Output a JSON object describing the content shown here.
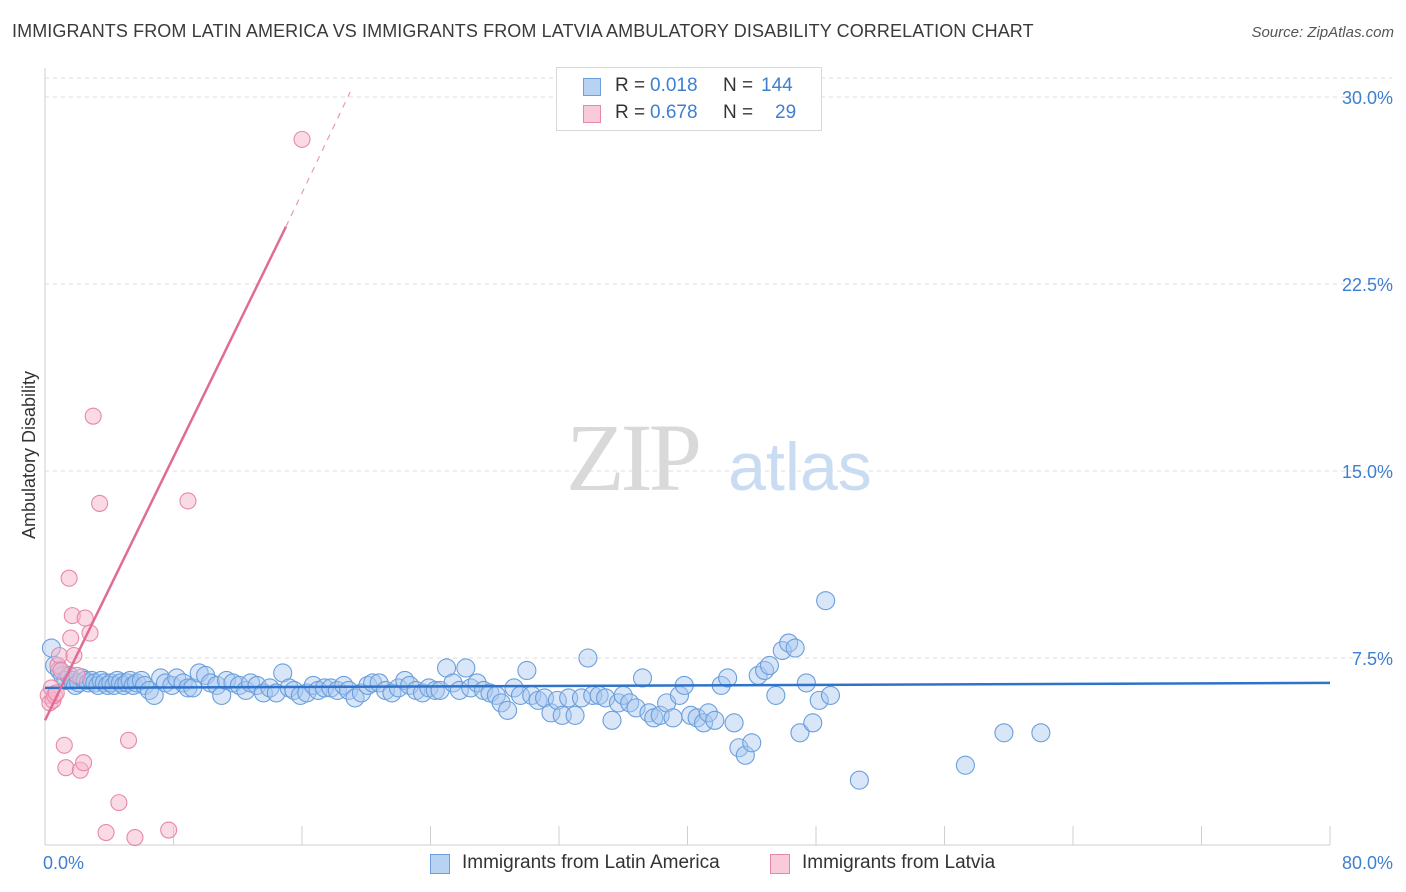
{
  "title": "IMMIGRANTS FROM LATIN AMERICA VS IMMIGRANTS FROM LATVIA AMBULATORY DISABILITY CORRELATION CHART",
  "source": "Source: ZipAtlas.com",
  "watermark": {
    "zip": "ZIP",
    "atlas": "atlas"
  },
  "colors": {
    "blue_fill": "#a8c8f0",
    "blue_stroke": "#6a9fdc",
    "blue_line": "#2f72c9",
    "pink_fill": "#f6b8cb",
    "pink_stroke": "#e888a8",
    "pink_line": "#e06c95",
    "tick_label": "#3f7fd0",
    "grid": "#dcdcdc"
  },
  "legend": {
    "rows": [
      {
        "r_label": "R =",
        "r_value": "0.018",
        "n_label": "N =",
        "n_value": "144"
      },
      {
        "r_label": "R =",
        "r_value": "0.678",
        "n_label": "N =",
        "n_value": "29"
      }
    ]
  },
  "bottom_legend": [
    "Immigrants from Latin America",
    "Immigrants from Latvia"
  ],
  "chart_data": {
    "type": "scatter",
    "title": "IMMIGRANTS FROM LATIN AMERICA VS IMMIGRANTS FROM LATVIA AMBULATORY DISABILITY CORRELATION CHART",
    "xlabel": "",
    "ylabel": "Ambulatory Disability",
    "xlim": [
      0,
      80
    ],
    "ylim": [
      0,
      30.5
    ],
    "x_tick_labels": [
      "0.0%",
      "80.0%"
    ],
    "y_ticks": [
      7.5,
      15.0,
      22.5,
      30.0
    ],
    "y_tick_labels": [
      "7.5%",
      "15.0%",
      "22.5%",
      "30.0%"
    ],
    "grid": "horizontal dashed",
    "legend_placement": "top-center and bottom",
    "series": [
      {
        "name": "Immigrants from Latin America",
        "color": "#a8c8f0",
        "r": 0.018,
        "n": 144,
        "trend": {
          "x": [
            0,
            80
          ],
          "y": [
            6.3,
            6.5
          ]
        },
        "points": [
          [
            0.4,
            7.9
          ],
          [
            0.6,
            7.2
          ],
          [
            0.9,
            7.0
          ],
          [
            1.1,
            6.8
          ],
          [
            1.3,
            6.6
          ],
          [
            1.5,
            6.8
          ],
          [
            1.7,
            6.6
          ],
          [
            1.9,
            6.4
          ],
          [
            2.1,
            6.5
          ],
          [
            2.3,
            6.7
          ],
          [
            2.5,
            6.6
          ],
          [
            2.7,
            6.5
          ],
          [
            2.9,
            6.6
          ],
          [
            3.1,
            6.5
          ],
          [
            3.3,
            6.4
          ],
          [
            3.5,
            6.6
          ],
          [
            3.7,
            6.5
          ],
          [
            3.9,
            6.4
          ],
          [
            4.1,
            6.5
          ],
          [
            4.3,
            6.4
          ],
          [
            4.5,
            6.6
          ],
          [
            4.7,
            6.5
          ],
          [
            4.9,
            6.4
          ],
          [
            5.1,
            6.5
          ],
          [
            5.3,
            6.6
          ],
          [
            5.5,
            6.4
          ],
          [
            5.7,
            6.5
          ],
          [
            6.0,
            6.6
          ],
          [
            6.2,
            6.4
          ],
          [
            6.5,
            6.2
          ],
          [
            6.8,
            6.0
          ],
          [
            7.2,
            6.7
          ],
          [
            7.5,
            6.5
          ],
          [
            7.9,
            6.4
          ],
          [
            8.2,
            6.7
          ],
          [
            8.6,
            6.5
          ],
          [
            8.9,
            6.3
          ],
          [
            9.2,
            6.3
          ],
          [
            9.6,
            6.9
          ],
          [
            10.0,
            6.8
          ],
          [
            10.3,
            6.5
          ],
          [
            10.7,
            6.4
          ],
          [
            11.0,
            6.0
          ],
          [
            11.3,
            6.6
          ],
          [
            11.7,
            6.5
          ],
          [
            12.1,
            6.4
          ],
          [
            12.5,
            6.2
          ],
          [
            12.8,
            6.5
          ],
          [
            13.2,
            6.4
          ],
          [
            13.6,
            6.1
          ],
          [
            14.0,
            6.3
          ],
          [
            14.4,
            6.1
          ],
          [
            14.8,
            6.9
          ],
          [
            15.2,
            6.3
          ],
          [
            15.5,
            6.2
          ],
          [
            15.9,
            6.0
          ],
          [
            16.3,
            6.1
          ],
          [
            16.7,
            6.4
          ],
          [
            17.0,
            6.2
          ],
          [
            17.4,
            6.3
          ],
          [
            17.8,
            6.3
          ],
          [
            18.2,
            6.2
          ],
          [
            18.6,
            6.4
          ],
          [
            18.9,
            6.2
          ],
          [
            19.3,
            5.9
          ],
          [
            19.7,
            6.1
          ],
          [
            20.1,
            6.4
          ],
          [
            20.4,
            6.5
          ],
          [
            20.8,
            6.5
          ],
          [
            21.2,
            6.2
          ],
          [
            21.6,
            6.1
          ],
          [
            22.0,
            6.3
          ],
          [
            22.4,
            6.6
          ],
          [
            22.7,
            6.4
          ],
          [
            23.1,
            6.2
          ],
          [
            23.5,
            6.1
          ],
          [
            23.9,
            6.3
          ],
          [
            24.3,
            6.2
          ],
          [
            24.6,
            6.2
          ],
          [
            25.0,
            7.1
          ],
          [
            25.4,
            6.5
          ],
          [
            25.8,
            6.2
          ],
          [
            26.2,
            7.1
          ],
          [
            26.5,
            6.3
          ],
          [
            26.9,
            6.5
          ],
          [
            27.3,
            6.2
          ],
          [
            27.7,
            6.1
          ],
          [
            28.1,
            6.0
          ],
          [
            28.4,
            5.7
          ],
          [
            28.8,
            5.4
          ],
          [
            29.2,
            6.3
          ],
          [
            29.6,
            6.0
          ],
          [
            30.0,
            7.0
          ],
          [
            30.3,
            6.0
          ],
          [
            30.7,
            5.8
          ],
          [
            31.1,
            5.9
          ],
          [
            31.5,
            5.3
          ],
          [
            31.9,
            5.8
          ],
          [
            32.2,
            5.2
          ],
          [
            32.6,
            5.9
          ],
          [
            33.0,
            5.2
          ],
          [
            33.4,
            5.9
          ],
          [
            33.8,
            7.5
          ],
          [
            34.1,
            6.0
          ],
          [
            34.5,
            6.0
          ],
          [
            34.9,
            5.9
          ],
          [
            35.3,
            5.0
          ],
          [
            35.7,
            5.7
          ],
          [
            36.0,
            6.0
          ],
          [
            36.4,
            5.7
          ],
          [
            36.8,
            5.5
          ],
          [
            37.2,
            6.7
          ],
          [
            37.6,
            5.3
          ],
          [
            37.9,
            5.1
          ],
          [
            38.3,
            5.2
          ],
          [
            38.7,
            5.7
          ],
          [
            39.1,
            5.1
          ],
          [
            39.5,
            6.0
          ],
          [
            39.8,
            6.4
          ],
          [
            40.2,
            5.2
          ],
          [
            40.6,
            5.1
          ],
          [
            41.0,
            4.9
          ],
          [
            41.3,
            5.3
          ],
          [
            41.7,
            5.0
          ],
          [
            42.1,
            6.4
          ],
          [
            42.5,
            6.7
          ],
          [
            42.9,
            4.9
          ],
          [
            43.2,
            3.9
          ],
          [
            43.6,
            3.6
          ],
          [
            44.0,
            4.1
          ],
          [
            44.4,
            6.8
          ],
          [
            44.8,
            7.0
          ],
          [
            45.1,
            7.2
          ],
          [
            45.5,
            6.0
          ],
          [
            45.9,
            7.8
          ],
          [
            46.3,
            8.1
          ],
          [
            46.7,
            7.9
          ],
          [
            47.0,
            4.5
          ],
          [
            47.4,
            6.5
          ],
          [
            47.8,
            4.9
          ],
          [
            48.2,
            5.8
          ],
          [
            48.6,
            9.8
          ],
          [
            48.9,
            6.0
          ],
          [
            50.7,
            2.6
          ],
          [
            57.3,
            3.2
          ],
          [
            59.7,
            4.5
          ],
          [
            62.0,
            4.5
          ]
        ]
      },
      {
        "name": "Immigrants from Latvia",
        "color": "#f6b8cb",
        "r": 0.678,
        "n": 29,
        "trend": {
          "x": [
            0,
            15
          ],
          "y": [
            5.0,
            24.8
          ]
        },
        "trend_extension": {
          "x": [
            15,
            19
          ],
          "y": [
            24.8,
            30.2
          ]
        },
        "points": [
          [
            0.2,
            6.0
          ],
          [
            0.3,
            5.7
          ],
          [
            0.4,
            6.3
          ],
          [
            0.5,
            5.8
          ],
          [
            0.6,
            6.0
          ],
          [
            0.7,
            6.1
          ],
          [
            0.8,
            7.2
          ],
          [
            0.9,
            7.6
          ],
          [
            1.0,
            7.0
          ],
          [
            1.2,
            4.0
          ],
          [
            1.3,
            3.1
          ],
          [
            1.5,
            10.7
          ],
          [
            1.6,
            8.3
          ],
          [
            1.7,
            9.2
          ],
          [
            1.8,
            7.6
          ],
          [
            2.0,
            6.8
          ],
          [
            2.2,
            3.0
          ],
          [
            2.4,
            3.3
          ],
          [
            2.5,
            9.1
          ],
          [
            2.8,
            8.5
          ],
          [
            3.0,
            17.2
          ],
          [
            3.4,
            13.7
          ],
          [
            3.8,
            0.5
          ],
          [
            4.6,
            1.7
          ],
          [
            5.2,
            4.2
          ],
          [
            5.6,
            0.3
          ],
          [
            7.7,
            0.6
          ],
          [
            8.9,
            13.8
          ],
          [
            16.0,
            28.3
          ]
        ]
      }
    ]
  }
}
